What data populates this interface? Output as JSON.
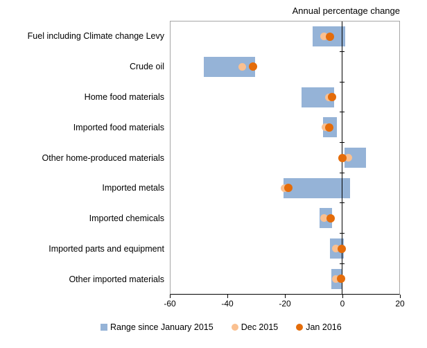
{
  "chart_data": {
    "type": "bar",
    "subtype": "horizontal_range_bars_with_point_markers",
    "title": "Annual percentage change",
    "categories": [
      "Fuel including Climate change Levy",
      "Crude oil",
      "Home food materials",
      "Imported food materials",
      "Other home-produced materials",
      "Imported metals",
      "Imported chemicals",
      "Imported parts and equipment",
      "Other imported materials"
    ],
    "series": [
      {
        "name": "Range since January 2015",
        "marker": "square",
        "color": "#95B3D7",
        "ranges": [
          [
            -10.3,
            1.0
          ],
          [
            -48.4,
            -30.5
          ],
          [
            -14.2,
            -2.8
          ],
          [
            -6.7,
            -1.9
          ],
          [
            0.8,
            8.3
          ],
          [
            -20.5,
            2.7
          ],
          [
            -7.9,
            -3.5
          ],
          [
            -4.3,
            0.7
          ],
          [
            -3.8,
            0.0
          ]
        ]
      },
      {
        "name": "Dec 2015",
        "marker": "circle",
        "color": "#FAC090",
        "values": [
          -6.4,
          -34.9,
          -4.7,
          -5.8,
          2.2,
          -20.1,
          -6.2,
          -2.2,
          -2.2
        ]
      },
      {
        "name": "Jan 2016",
        "marker": "circle",
        "color": "#E46C0A",
        "values": [
          -4.3,
          -31.2,
          -3.4,
          -4.6,
          0.0,
          -18.8,
          -3.9,
          -0.2,
          -0.3
        ]
      }
    ],
    "xlim": [
      -60,
      20
    ],
    "xticks": [
      -60,
      -40,
      -20,
      0,
      20
    ],
    "grid": false,
    "legend_position": "bottom",
    "zero_axis_line": true
  },
  "colors": {
    "range_bar": "#95B3D7",
    "dec_2015_dot": "#FAC090",
    "jan_2016_dot": "#E46C0A",
    "plot_border": "#A6A6A6",
    "axis": "#000000",
    "text": "#000000",
    "background": "#FFFFFF"
  }
}
